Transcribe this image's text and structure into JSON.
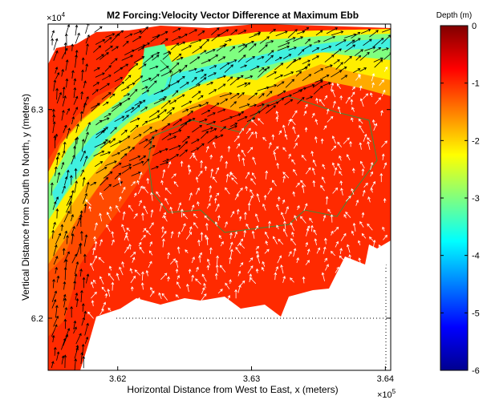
{
  "chart_data": {
    "type": "contour",
    "title": "M2 Forcing:Velocity Vector Difference at Maximum Ebb",
    "x_label": "Horizontal Distance from West to East, x (meters)",
    "y_label": "Vertical Distance from South to North, y (meters)",
    "x_multiplier": {
      "base": "×10",
      "exponent": "5"
    },
    "y_multiplier": {
      "base": "×10",
      "exponent": "4"
    },
    "xlim": [
      361480,
      364040
    ],
    "xticks": [
      {
        "value": 362000,
        "label": "3.62"
      },
      {
        "value": 363000,
        "label": "3.63"
      },
      {
        "value": 364000,
        "label": "3.64"
      }
    ],
    "ylim": [
      61750,
      63410
    ],
    "yticks": [
      {
        "value": 62000,
        "label": "6.2"
      },
      {
        "value": 63000,
        "label": "6.3"
      }
    ],
    "colorbar": {
      "label": "Depth (m)",
      "lim": [
        -6,
        0
      ],
      "ticks": [
        0,
        -1,
        -2,
        -3,
        -4,
        -5,
        -6
      ],
      "colormap": "jet"
    }
  }
}
